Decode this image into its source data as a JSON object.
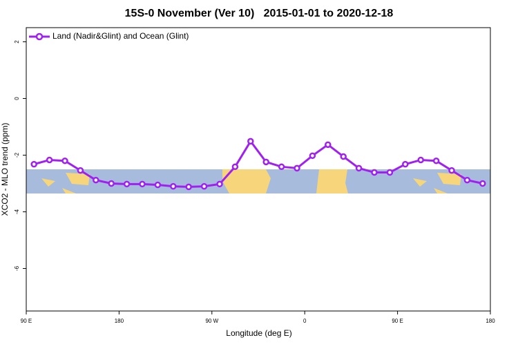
{
  "chart_data": {
    "type": "line",
    "title": "15S-0 November (Ver 10)   2015-01-01 to 2020-12-18",
    "x_label": "Longitude (deg E)",
    "y_label": "XCO2 - MLO trend (ppm)",
    "x": [
      97.5,
      112.5,
      127.5,
      142.5,
      157.5,
      172.5,
      187.5,
      202.5,
      217.5,
      232.5,
      247.5,
      262.5,
      277.5,
      292.5,
      307.5,
      322.5,
      337.5,
      352.5,
      367.5,
      382.5,
      397.5,
      412.5,
      427.5,
      442.5,
      457.5,
      472.5,
      487.5,
      502.5,
      517.5,
      532.5
    ],
    "series": [
      {
        "name": "Land (Nadir&Glint) and Ocean (Glint)",
        "color": "#a020f0",
        "values": [
          -2.32,
          -2.17,
          -2.2,
          -2.54,
          -2.88,
          -3.0,
          -3.02,
          -3.02,
          -3.05,
          -3.1,
          -3.12,
          -3.1,
          -3.02,
          -2.41,
          -1.51,
          -2.24,
          -2.41,
          -2.46,
          -2.02,
          -1.63,
          -2.05,
          -2.46,
          -2.61,
          -2.61,
          -2.32,
          -2.17,
          -2.2,
          -2.54,
          -2.88,
          -3.0
        ]
      }
    ],
    "xlim": [
      90,
      540
    ],
    "ylim": [
      -7.5,
      2.5
    ],
    "xticks": [
      {
        "value": 90,
        "label": "90 E"
      },
      {
        "value": 180,
        "label": "180"
      },
      {
        "value": 270,
        "label": "90 W"
      },
      {
        "value": 360,
        "label": "0"
      },
      {
        "value": 450,
        "label": "90 E"
      },
      {
        "value": 540,
        "label": "180"
      }
    ],
    "yticks": [
      -6,
      -4,
      -2,
      0,
      2
    ],
    "legend_position": "top-left"
  }
}
